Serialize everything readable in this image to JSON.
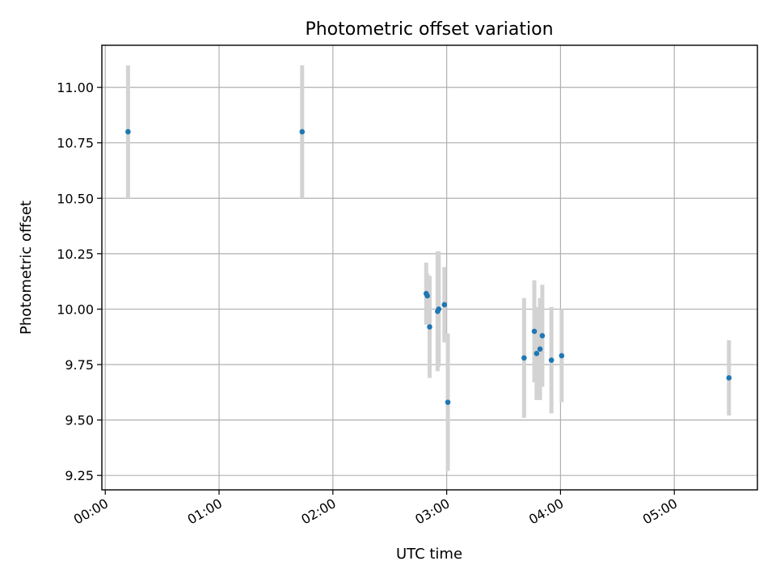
{
  "chart_data": {
    "type": "scatter",
    "title": "Photometric offset variation",
    "xlabel": "UTC time",
    "ylabel": "Photometric offset",
    "x_unit": "hours (UTC)",
    "xlim": [
      -0.03,
      5.73
    ],
    "ylim": [
      9.185,
      11.19
    ],
    "x_ticks": [
      {
        "value": 0,
        "label": "00:00"
      },
      {
        "value": 1,
        "label": "01:00"
      },
      {
        "value": 2,
        "label": "02:00"
      },
      {
        "value": 3,
        "label": "03:00"
      },
      {
        "value": 4,
        "label": "04:00"
      },
      {
        "value": 5,
        "label": "05:00"
      }
    ],
    "y_ticks": [
      {
        "value": 9.25,
        "label": "9.25"
      },
      {
        "value": 9.5,
        "label": "9.50"
      },
      {
        "value": 9.75,
        "label": "9.75"
      },
      {
        "value": 10.0,
        "label": "10.00"
      },
      {
        "value": 10.25,
        "label": "10.25"
      },
      {
        "value": 10.5,
        "label": "10.50"
      },
      {
        "value": 10.75,
        "label": "10.75"
      },
      {
        "value": 11.0,
        "label": "11.00"
      }
    ],
    "grid": true,
    "colors": {
      "marker": "#1f77b4",
      "errorbar": "#d3d3d3",
      "grid": "#b0b0b0"
    },
    "series": [
      {
        "points": [
          {
            "x": 0.2,
            "y": 10.8,
            "yerr": 0.3
          },
          {
            "x": 1.73,
            "y": 10.8,
            "yerr": 0.3
          },
          {
            "x": 2.82,
            "y": 10.07,
            "yerr": 0.14
          },
          {
            "x": 2.83,
            "y": 10.06,
            "yerr": 0.1
          },
          {
            "x": 2.85,
            "y": 9.92,
            "yerr": 0.23
          },
          {
            "x": 2.92,
            "y": 9.99,
            "yerr": 0.27
          },
          {
            "x": 2.93,
            "y": 10.0,
            "yerr": 0.26
          },
          {
            "x": 2.98,
            "y": 10.02,
            "yerr": 0.17
          },
          {
            "x": 3.01,
            "y": 9.58,
            "yerr": 0.31
          },
          {
            "x": 3.68,
            "y": 9.78,
            "yerr": 0.27
          },
          {
            "x": 3.77,
            "y": 9.9,
            "yerr": 0.23
          },
          {
            "x": 3.79,
            "y": 9.8,
            "yerr": 0.21
          },
          {
            "x": 3.82,
            "y": 9.82,
            "yerr": 0.23
          },
          {
            "x": 3.84,
            "y": 9.88,
            "yerr": 0.23
          },
          {
            "x": 3.92,
            "y": 9.77,
            "yerr": 0.24
          },
          {
            "x": 4.01,
            "y": 9.79,
            "yerr": 0.21
          },
          {
            "x": 5.48,
            "y": 9.69,
            "yerr": 0.17
          }
        ]
      }
    ]
  }
}
